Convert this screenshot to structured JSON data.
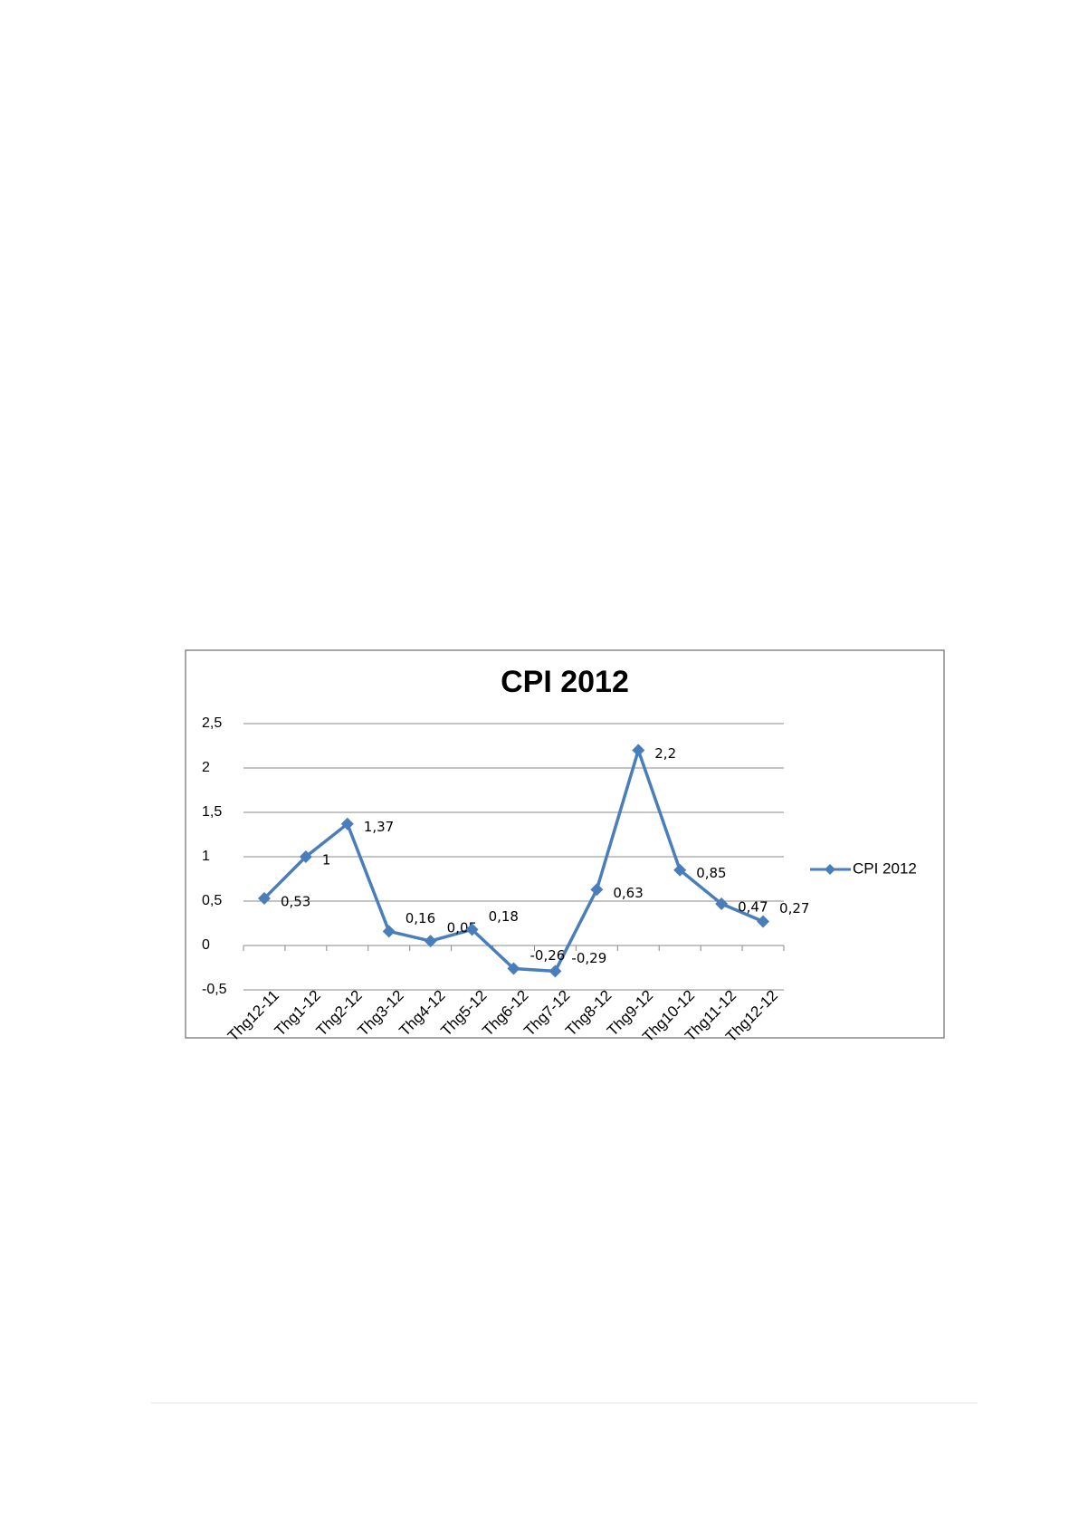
{
  "chart_data": {
    "type": "line",
    "title": "CPI 2012",
    "categories": [
      "Thg12-11",
      "Thg1-12",
      "Thg2-12",
      "Thg3-12",
      "Thg4-12",
      "Thg5-12",
      "Thg6-12",
      "Thg7-12",
      "Thg8-12",
      "Thg9-12",
      "Thg10-12",
      "Thg11-12",
      "Thg12-12"
    ],
    "series": [
      {
        "name": "CPI 2012",
        "color": "#4a7ebb",
        "values": [
          0.53,
          1,
          1.37,
          0.16,
          0.05,
          0.18,
          -0.26,
          -0.29,
          0.63,
          2.2,
          0.85,
          0.47,
          0.27
        ],
        "value_labels": [
          "0,53",
          "1",
          "1,37",
          "0,16",
          "0,05",
          "0,18",
          "-0,26",
          "-0,29",
          "0,63",
          "2,2",
          "0,85",
          "0,47",
          "0,27"
        ]
      }
    ],
    "ylim": [
      -0.5,
      2.5
    ],
    "yticks": [
      {
        "value": -0.5,
        "label": "-0,5"
      },
      0,
      {
        "value": 0.5,
        "label": "0,5"
      },
      1,
      {
        "value": 1.5,
        "label": "1,5"
      },
      2,
      {
        "value": 2.5,
        "label": "2,5"
      }
    ],
    "grid": true,
    "legend": "right"
  }
}
